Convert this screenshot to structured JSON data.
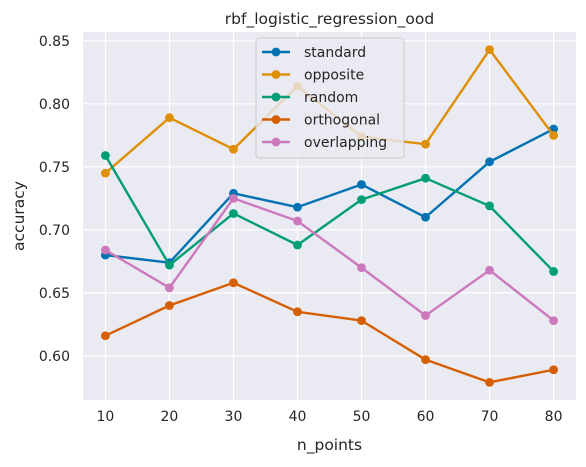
{
  "chart_data": {
    "type": "line",
    "title": "rbf_logistic_regression_ood",
    "xlabel": "n_points",
    "ylabel": "accuracy",
    "x": [
      10,
      20,
      30,
      40,
      50,
      60,
      70,
      80
    ],
    "xticks": [
      "10",
      "20",
      "30",
      "40",
      "50",
      "60",
      "70",
      "80"
    ],
    "yticks": [
      "0.60",
      "0.65",
      "0.70",
      "0.75",
      "0.80",
      "0.85"
    ],
    "xlim": [
      6.5,
      83.5
    ],
    "ylim": [
      0.565,
      0.857
    ],
    "grid": true,
    "legend_position": "top-center",
    "series": [
      {
        "name": "standard",
        "color": "#0173b2",
        "values": [
          0.68,
          0.674,
          0.729,
          0.718,
          0.736,
          0.71,
          0.754,
          0.78
        ]
      },
      {
        "name": "opposite",
        "color": "#de8f05",
        "values": [
          0.745,
          0.789,
          0.764,
          0.814,
          0.774,
          0.768,
          0.843,
          0.775
        ]
      },
      {
        "name": "random",
        "color": "#029e73",
        "values": [
          0.759,
          0.672,
          0.713,
          0.688,
          0.724,
          0.741,
          0.719,
          0.667
        ]
      },
      {
        "name": "orthogonal",
        "color": "#d55e00",
        "values": [
          0.616,
          0.64,
          0.658,
          0.635,
          0.628,
          0.597,
          0.579,
          0.589
        ]
      },
      {
        "name": "overlapping",
        "color": "#cc78bc",
        "values": [
          0.684,
          0.654,
          0.725,
          0.707,
          0.67,
          0.632,
          0.668,
          0.628
        ]
      }
    ]
  }
}
